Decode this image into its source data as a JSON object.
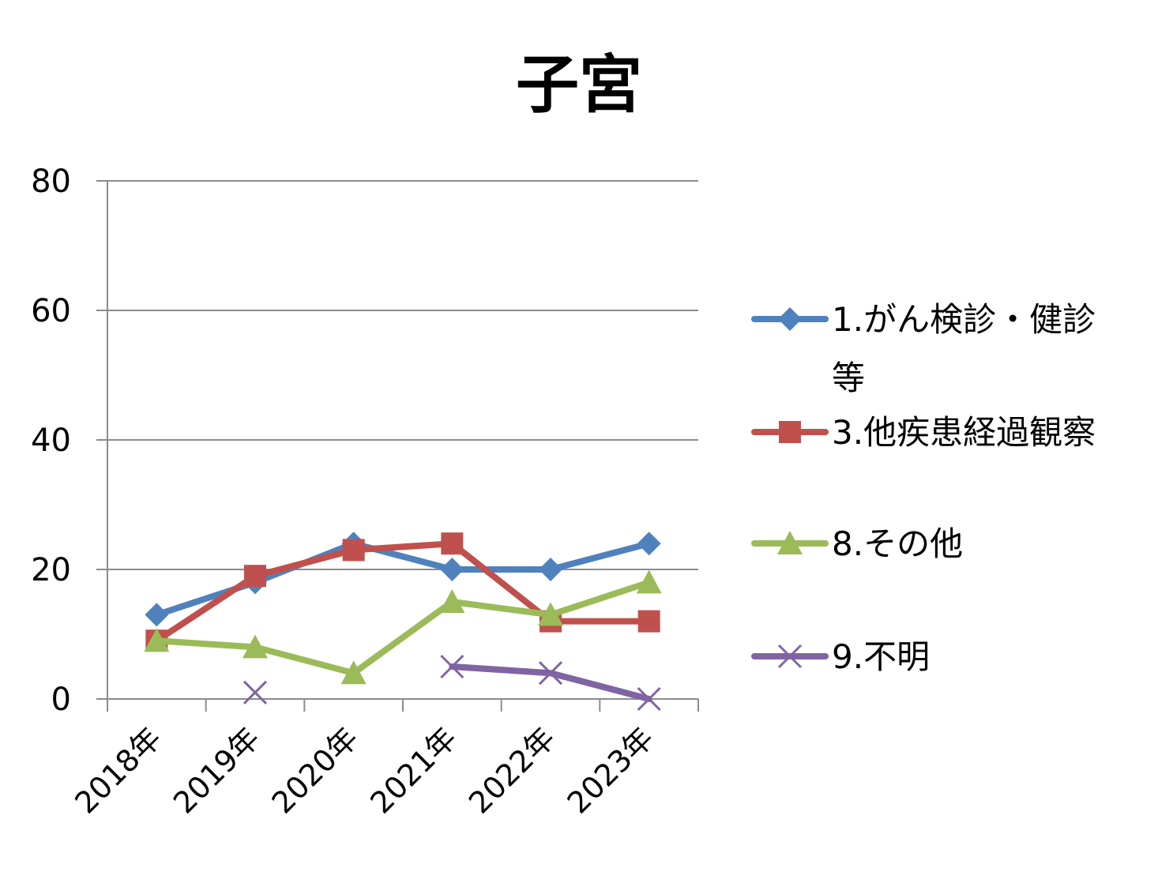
{
  "chart_data": {
    "type": "line",
    "title": "子宮",
    "xlabel": "",
    "ylabel": "",
    "categories": [
      "2018年",
      "2019年",
      "2020年",
      "2021年",
      "2022年",
      "2023年"
    ],
    "ylim": [
      0,
      80
    ],
    "yticks": [
      "0",
      "20",
      "40",
      "60",
      "80"
    ],
    "grid": true,
    "legend_position": "right",
    "series": [
      {
        "name": "1.がん検診・健診等",
        "legend_lines": [
          "1.がん検診・健診",
          "等"
        ],
        "color": "#4F81BD",
        "marker": "diamond",
        "values": [
          13,
          18,
          24,
          20,
          20,
          24
        ]
      },
      {
        "name": "3.他疾患経過観察",
        "legend_lines": [
          "3.他疾患経過観察"
        ],
        "color": "#C0504D",
        "marker": "square",
        "values": [
          9,
          19,
          23,
          24,
          12,
          12
        ]
      },
      {
        "name": "8.その他",
        "legend_lines": [
          "8.その他"
        ],
        "color": "#9BBB59",
        "marker": "triangle",
        "values": [
          9,
          8,
          4,
          15,
          13,
          18
        ]
      },
      {
        "name": "9.不明",
        "legend_lines": [
          "9.不明"
        ],
        "color": "#8064A2",
        "marker": "x",
        "values": [
          null,
          1,
          null,
          5,
          4,
          0
        ]
      }
    ]
  }
}
